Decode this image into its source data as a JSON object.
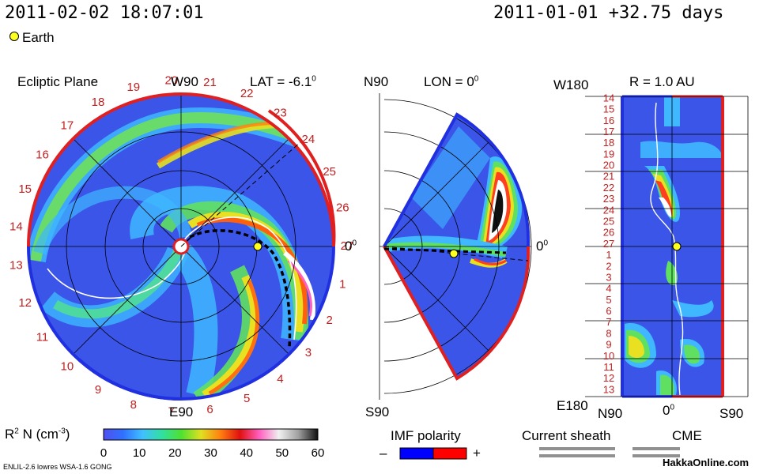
{
  "header": {
    "timestamp": "2011-02-02 18:07:01",
    "start_offset": "2011-01-01 +32.75 days",
    "earth_label": "Earth"
  },
  "ecliptic": {
    "title": "Ecliptic Plane",
    "top_label": "W90",
    "bottom_label": "E90",
    "right_label": "0",
    "lat_label": "LAT = -6.1",
    "lat_sup": "0",
    "day_labels": [
      "19",
      "20",
      "21",
      "22",
      "23",
      "24",
      "25",
      "26",
      "27",
      "1",
      "2",
      "3",
      "4",
      "5",
      "6",
      "7",
      "8",
      "9",
      "10",
      "11",
      "12",
      "13",
      "14",
      "15",
      "16",
      "17",
      "18"
    ]
  },
  "meridional": {
    "top_label": "N90",
    "bottom_label": "S90",
    "lon_label": "LON = 0",
    "lon_sup": "0",
    "right_label": "0"
  },
  "radial": {
    "title": "R = 1.0 AU",
    "top_left": "W180",
    "bottom_left": "E180",
    "x_left": "N90",
    "x_mid": "0",
    "x_right": "S90",
    "day_labels": [
      "14",
      "15",
      "16",
      "17",
      "18",
      "19",
      "20",
      "21",
      "22",
      "23",
      "24",
      "25",
      "26",
      "27",
      "1",
      "2",
      "3",
      "4",
      "5",
      "6",
      "7",
      "8",
      "9",
      "10",
      "11",
      "12",
      "13"
    ]
  },
  "colorbar": {
    "label_main": "R",
    "label_sup": "2",
    "label_rest": " N (cm",
    "label_exp": "-3",
    "label_close": ")",
    "ticks": [
      "0",
      "10",
      "20",
      "30",
      "40",
      "50",
      "60"
    ],
    "stops": [
      "#5050f0",
      "#3070ff",
      "#40c0ff",
      "#30e0a0",
      "#50e030",
      "#e0e020",
      "#ff8010",
      "#e01010",
      "#ff60c0",
      "#f0f0f0",
      "#a0a0a0",
      "#101010"
    ]
  },
  "imf": {
    "title": "IMF polarity",
    "minus": "–",
    "plus": "+",
    "neg_color": "#0000ff",
    "pos_color": "#ff0000"
  },
  "sheath": {
    "title": "Current sheath",
    "cme_label": "CME"
  },
  "footer": {
    "model_info": "ENLIL-2.6 lowres WSA-1.6 GONG",
    "watermark": "HakkaOnline.com"
  }
}
